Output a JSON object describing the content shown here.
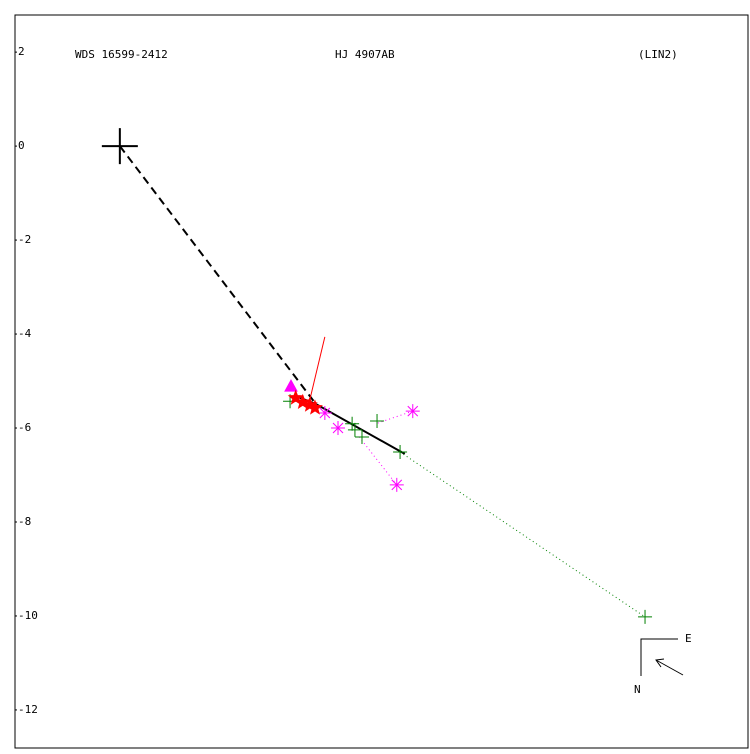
{
  "chart_data": {
    "type": "scatter",
    "title": "WDS 16599-2412",
    "subtitle": "HJ 4907AB",
    "annotation": "(LIN2)",
    "xlim": [
      -2.23,
      13.36
    ],
    "ylim": [
      -12.81,
      2.79
    ],
    "yticks": [
      2,
      0,
      -2,
      -4,
      -6,
      -8,
      -10,
      -12
    ],
    "compass": {
      "east": "E",
      "north": "N"
    },
    "primary": {
      "x": 0,
      "y": 0,
      "color": "#000000"
    },
    "lines": [
      {
        "style": "dashed",
        "color": "#000000",
        "x": [
          0,
          4.17
        ],
        "y": [
          0,
          -5.49
        ]
      },
      {
        "style": "solid",
        "color": "#000000",
        "x": [
          3.74,
          4.17,
          6.06
        ],
        "y": [
          -5.32,
          -5.49,
          -6.55
        ]
      },
      {
        "style": "dotted",
        "color": "#008000",
        "x": [
          5.96,
          11.17
        ],
        "y": [
          -6.51,
          -10.02
        ]
      },
      {
        "style": "dotted",
        "color": "#ff00ff",
        "x": [
          6.23,
          5.47
        ],
        "y": [
          -5.64,
          -5.9
        ]
      },
      {
        "style": "dotted",
        "color": "#ff00ff",
        "x": [
          5.89,
          5.09
        ],
        "y": [
          -7.21,
          -6.19
        ]
      },
      {
        "style": "thin",
        "color": "#ff0000",
        "x": [
          4.04,
          4.36
        ],
        "y": [
          -5.4,
          -4.06
        ]
      }
    ],
    "series": [
      {
        "marker": "plus",
        "color": "#008000",
        "x": [
          3.62,
          4.94,
          5.0,
          5.15,
          5.47,
          5.96,
          11.17
        ],
        "y": [
          -5.43,
          -5.91,
          -6.04,
          -6.19,
          -5.85,
          -6.51,
          -10.02
        ]
      },
      {
        "marker": "asterisk",
        "color": "#ff00ff",
        "x": [
          4.64,
          4.36,
          6.23,
          5.89
        ],
        "y": [
          -6.0,
          -5.68,
          -5.64,
          -7.21
        ]
      },
      {
        "marker": "triangle",
        "color": "#ff00ff",
        "x": [
          3.64
        ],
        "y": [
          -5.13
        ]
      },
      {
        "marker": "star",
        "color": "#ff0000",
        "x": [
          3.74,
          3.89,
          4.04,
          4.15
        ],
        "y": [
          -5.36,
          -5.45,
          -5.51,
          -5.57
        ]
      }
    ]
  }
}
